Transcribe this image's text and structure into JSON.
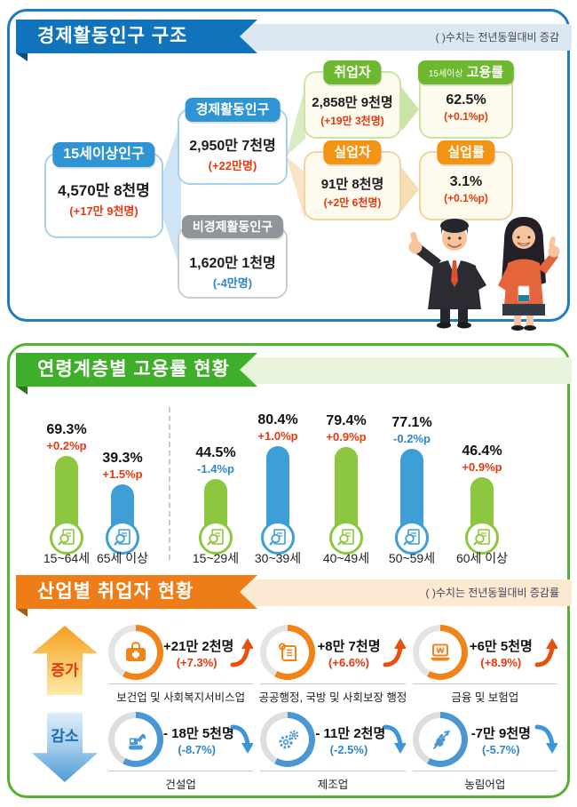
{
  "section1": {
    "title": "경제활동인구 구조",
    "note": "( )수치는 전년동월대비 증감",
    "boxes": {
      "pop15": {
        "label": "15세이상인구",
        "value": "4,570만 8천명",
        "change": "(+17만 9천명)"
      },
      "active": {
        "label": "경제활동인구",
        "value": "2,950만 7천명",
        "change": "(+22만명)"
      },
      "inactive": {
        "label": "비경제활동인구",
        "value": "1,620만 1천명",
        "change": "(-4만명)"
      },
      "employed": {
        "label": "취업자",
        "value": "2,858만 9천명",
        "change": "(+19만 3천명)"
      },
      "emp_rate": {
        "label_small": "15세이상",
        "label": "고용률",
        "value": "62.5%",
        "change": "(+0.1%p)"
      },
      "unemployed": {
        "label": "실업자",
        "value": "91만 8천명",
        "change": "(+2만 6천명)"
      },
      "unemp_rate": {
        "label": "실업률",
        "value": "3.1%",
        "change": "(+0.1%p)"
      }
    }
  },
  "section2": {
    "title": "연령계층별 고용률 현황"
  },
  "chart_data": {
    "type": "bar",
    "title": "연령계층별 고용률 현황",
    "categories": [
      "15~64세",
      "65세 이상",
      "15~29세",
      "30~39세",
      "40~49세",
      "50~59세",
      "60세 이상"
    ],
    "values": [
      69.3,
      39.3,
      44.5,
      80.4,
      79.4,
      77.1,
      46.4
    ],
    "value_labels": [
      "69.3%",
      "39.3%",
      "44.5%",
      "80.4%",
      "79.4%",
      "77.1%",
      "46.4%"
    ],
    "changes": [
      "+0.2%p",
      "+1.5%p",
      "-1.4%p",
      "+1.0%p",
      "+0.9%p",
      "-0.2%p",
      "+0.9%p"
    ],
    "bar_colors": [
      "#8dc63f",
      "#3e9ed6",
      "#8dc63f",
      "#3e9ed6",
      "#8dc63f",
      "#3e9ed6",
      "#8dc63f"
    ],
    "unit": "%",
    "ylim": [
      0,
      100
    ],
    "grid": false,
    "divider_after_index": 1,
    "legend": null
  },
  "section3": {
    "title": "산업별 취업자 현황",
    "note": "( )수치는 전년동월대비 증감률",
    "increase": {
      "label": "증가",
      "items": [
        {
          "icon": "medical-bag",
          "name": "보건업 및 사회복지서비스업",
          "value": "+21만 2천명",
          "rate": "(+7.3%)"
        },
        {
          "icon": "scroll",
          "name": "공공행정, 국방 및 사회보장 행정",
          "value": "+8만 7천명",
          "rate": "(+6.6%)"
        },
        {
          "icon": "laptop-won",
          "name": "금융 및 보험업",
          "value": "+6만 5천명",
          "rate": "(+8.9%)"
        }
      ]
    },
    "decrease": {
      "label": "감소",
      "items": [
        {
          "icon": "excavator",
          "name": "건설업",
          "value": "- 18만 5천명",
          "rate": "(-8.7%)"
        },
        {
          "icon": "gears",
          "name": "제조업",
          "value": "- 11만 2천명",
          "rate": "(-2.5%)"
        },
        {
          "icon": "wheat",
          "name": "농림어업",
          "value": "-7만 9천명",
          "rate": "(-5.7%)"
        }
      ]
    }
  },
  "colors": {
    "section1_accent": "#1d7cc2",
    "section2_accent": "#3fae2a",
    "section3_accent": "#ee7d17",
    "bar_green": "#8dc63f",
    "bar_blue": "#3e9ed6",
    "positive_text": "#e8380d",
    "negative_text": "#2e86c8",
    "increase_ring": "#f08418",
    "decrease_ring": "#4a97d4"
  }
}
